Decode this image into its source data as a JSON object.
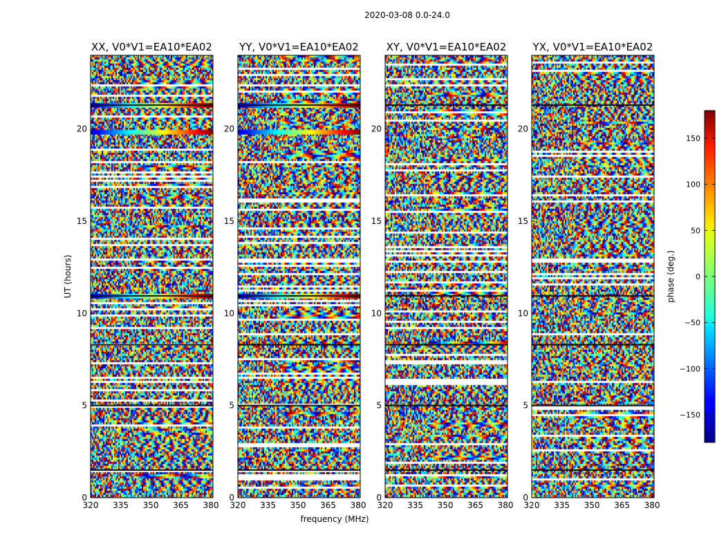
{
  "chart_data": {
    "type": "heatmap",
    "suptitle": "2020-03-08 0.0-24.0",
    "xlabel": "frequency (MHz)",
    "ylabel": "UT (hours)",
    "xlim": [
      320,
      381
    ],
    "ylim": [
      0,
      24
    ],
    "xticks": [
      320,
      335,
      350,
      365,
      380
    ],
    "yticks": [
      0,
      5,
      10,
      15,
      20
    ],
    "colorbar": {
      "label": "phase (deg.)",
      "range": [
        -180,
        180
      ],
      "ticks": [
        150,
        100,
        50,
        0,
        -50,
        -100,
        -150
      ],
      "tick_labels": [
        "150",
        "100",
        "50",
        "0",
        "−50",
        "−100",
        "−150"
      ],
      "colormap": "jet"
    },
    "panels": [
      {
        "title": "XX, V0*V1=EA10*EA02",
        "polarization": "XX"
      },
      {
        "title": "YY, V0*V1=EA10*EA02",
        "polarization": "YY"
      },
      {
        "title": "XY, V0*V1=EA10*EA02",
        "polarization": "XY"
      },
      {
        "title": "YX, V0*V1=EA10*EA02",
        "polarization": "YX"
      }
    ],
    "flagged_rows_hours": [
      1.5,
      5.0,
      8.3,
      10.95,
      21.3
    ],
    "colors": {
      "axis": "#000000",
      "background": "#ffffff"
    }
  }
}
